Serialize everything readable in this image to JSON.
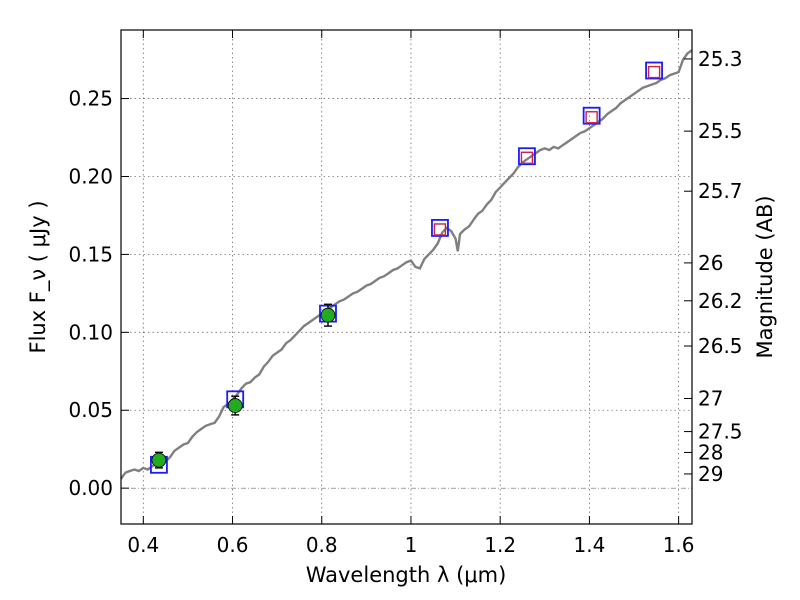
{
  "chart_data": {
    "type": "scatter",
    "xlabel": "Wavelength λ (μm)",
    "ylabel": "Flux F_ν ( μJy )",
    "y2label": "Magnitude (AB)",
    "xlim": [
      0.35,
      1.63
    ],
    "ylim": [
      -0.023,
      0.294
    ],
    "grid": true,
    "x_ticks": [
      {
        "value": 0.4,
        "label": "0.4"
      },
      {
        "value": 0.6,
        "label": "0.6"
      },
      {
        "value": 0.8,
        "label": "0.8"
      },
      {
        "value": 1.0,
        "label": "1"
      },
      {
        "value": 1.2,
        "label": "1.2"
      },
      {
        "value": 1.4,
        "label": "1.4"
      },
      {
        "value": 1.6,
        "label": "1.6"
      }
    ],
    "y_ticks": [
      {
        "value": 0.0,
        "label": "0.00"
      },
      {
        "value": 0.05,
        "label": "0.05"
      },
      {
        "value": 0.1,
        "label": "0.10"
      },
      {
        "value": 0.15,
        "label": "0.15"
      },
      {
        "value": 0.2,
        "label": "0.20"
      },
      {
        "value": 0.25,
        "label": "0.25"
      }
    ],
    "y2_ticks": [
      {
        "value": 25.3,
        "label": "25.3"
      },
      {
        "value": 25.5,
        "label": "25.5"
      },
      {
        "value": 25.7,
        "label": "25.7"
      },
      {
        "value": 26.0,
        "label": "26"
      },
      {
        "value": 26.2,
        "label": "26.2"
      },
      {
        "value": 26.5,
        "label": "26.5"
      },
      {
        "value": 27.0,
        "label": "27"
      },
      {
        "value": 27.5,
        "label": "27.5"
      },
      {
        "value": 28.0,
        "label": "28"
      },
      {
        "value": 29.0,
        "label": "29"
      }
    ],
    "model_spectrum": {
      "color": "#808080",
      "points": [
        [
          0.35,
          0.006
        ],
        [
          0.36,
          0.01
        ],
        [
          0.37,
          0.011
        ],
        [
          0.38,
          0.012
        ],
        [
          0.39,
          0.011
        ],
        [
          0.4,
          0.013
        ],
        [
          0.41,
          0.012
        ],
        [
          0.42,
          0.014
        ],
        [
          0.43,
          0.016
        ],
        [
          0.44,
          0.017
        ],
        [
          0.45,
          0.017
        ],
        [
          0.46,
          0.02
        ],
        [
          0.47,
          0.024
        ],
        [
          0.48,
          0.026
        ],
        [
          0.49,
          0.028
        ],
        [
          0.5,
          0.029
        ],
        [
          0.51,
          0.033
        ],
        [
          0.52,
          0.036
        ],
        [
          0.53,
          0.038
        ],
        [
          0.54,
          0.04
        ],
        [
          0.55,
          0.041
        ],
        [
          0.56,
          0.042
        ],
        [
          0.57,
          0.046
        ],
        [
          0.58,
          0.052
        ],
        [
          0.59,
          0.054
        ],
        [
          0.6,
          0.057
        ],
        [
          0.61,
          0.06
        ],
        [
          0.62,
          0.064
        ],
        [
          0.63,
          0.067
        ],
        [
          0.64,
          0.068
        ],
        [
          0.65,
          0.071
        ],
        [
          0.66,
          0.073
        ],
        [
          0.67,
          0.078
        ],
        [
          0.68,
          0.081
        ],
        [
          0.69,
          0.085
        ],
        [
          0.7,
          0.087
        ],
        [
          0.71,
          0.089
        ],
        [
          0.72,
          0.093
        ],
        [
          0.73,
          0.095
        ],
        [
          0.74,
          0.098
        ],
        [
          0.75,
          0.101
        ],
        [
          0.76,
          0.104
        ],
        [
          0.77,
          0.106
        ],
        [
          0.78,
          0.108
        ],
        [
          0.79,
          0.11
        ],
        [
          0.8,
          0.112
        ],
        [
          0.81,
          0.114
        ],
        [
          0.82,
          0.116
        ],
        [
          0.83,
          0.118
        ],
        [
          0.84,
          0.12
        ],
        [
          0.85,
          0.121
        ],
        [
          0.86,
          0.123
        ],
        [
          0.87,
          0.125
        ],
        [
          0.88,
          0.126
        ],
        [
          0.89,
          0.128
        ],
        [
          0.9,
          0.13
        ],
        [
          0.91,
          0.131
        ],
        [
          0.92,
          0.133
        ],
        [
          0.93,
          0.135
        ],
        [
          0.94,
          0.136
        ],
        [
          0.95,
          0.138
        ],
        [
          0.96,
          0.14
        ],
        [
          0.97,
          0.141
        ],
        [
          0.98,
          0.143
        ],
        [
          0.99,
          0.145
        ],
        [
          1.0,
          0.146
        ],
        [
          1.01,
          0.142
        ],
        [
          1.02,
          0.141
        ],
        [
          1.03,
          0.147
        ],
        [
          1.04,
          0.15
        ],
        [
          1.05,
          0.153
        ],
        [
          1.06,
          0.157
        ],
        [
          1.07,
          0.164
        ],
        [
          1.08,
          0.167
        ],
        [
          1.09,
          0.165
        ],
        [
          1.1,
          0.16
        ],
        [
          1.105,
          0.152
        ],
        [
          1.11,
          0.163
        ],
        [
          1.12,
          0.166
        ],
        [
          1.13,
          0.168
        ],
        [
          1.14,
          0.172
        ],
        [
          1.15,
          0.176
        ],
        [
          1.16,
          0.178
        ],
        [
          1.17,
          0.182
        ],
        [
          1.18,
          0.185
        ],
        [
          1.19,
          0.19
        ],
        [
          1.2,
          0.193
        ],
        [
          1.21,
          0.196
        ],
        [
          1.22,
          0.199
        ],
        [
          1.23,
          0.202
        ],
        [
          1.24,
          0.206
        ],
        [
          1.25,
          0.209
        ],
        [
          1.26,
          0.211
        ],
        [
          1.27,
          0.213
        ],
        [
          1.28,
          0.215
        ],
        [
          1.29,
          0.217
        ],
        [
          1.3,
          0.218
        ],
        [
          1.31,
          0.217
        ],
        [
          1.32,
          0.219
        ],
        [
          1.33,
          0.218
        ],
        [
          1.34,
          0.22
        ],
        [
          1.35,
          0.222
        ],
        [
          1.36,
          0.224
        ],
        [
          1.37,
          0.226
        ],
        [
          1.38,
          0.228
        ],
        [
          1.39,
          0.229
        ],
        [
          1.4,
          0.231
        ],
        [
          1.41,
          0.233
        ],
        [
          1.42,
          0.235
        ],
        [
          1.43,
          0.237
        ],
        [
          1.44,
          0.24
        ],
        [
          1.45,
          0.242
        ],
        [
          1.46,
          0.244
        ],
        [
          1.47,
          0.247
        ],
        [
          1.48,
          0.249
        ],
        [
          1.49,
          0.251
        ],
        [
          1.5,
          0.253
        ],
        [
          1.51,
          0.255
        ],
        [
          1.52,
          0.257
        ],
        [
          1.53,
          0.258
        ],
        [
          1.54,
          0.259
        ],
        [
          1.55,
          0.26
        ],
        [
          1.56,
          0.262
        ],
        [
          1.57,
          0.263
        ],
        [
          1.58,
          0.265
        ],
        [
          1.59,
          0.266
        ],
        [
          1.6,
          0.267
        ],
        [
          1.61,
          0.275
        ],
        [
          1.62,
          0.279
        ],
        [
          1.63,
          0.281
        ]
      ]
    },
    "model_photometry": {
      "marker": "square",
      "color": "#1a1aff",
      "points": [
        [
          0.435,
          0.015
        ],
        [
          0.606,
          0.057
        ],
        [
          0.814,
          0.112
        ],
        [
          1.065,
          0.167
        ],
        [
          1.26,
          0.213
        ],
        [
          1.405,
          0.239
        ],
        [
          1.545,
          0.268
        ]
      ]
    },
    "observed_optical": {
      "marker": "circle",
      "color": "#22aa22",
      "points": [
        {
          "x": 0.435,
          "y": 0.018,
          "err": 0.005
        },
        {
          "x": 0.606,
          "y": 0.053,
          "err": 0.006
        },
        {
          "x": 0.814,
          "y": 0.111,
          "err": 0.007
        }
      ]
    },
    "observed_ir": {
      "marker": "square",
      "color": "#cc2244",
      "points": [
        [
          1.065,
          0.166
        ],
        [
          1.26,
          0.212
        ],
        [
          1.405,
          0.238
        ],
        [
          1.545,
          0.267
        ]
      ]
    }
  }
}
